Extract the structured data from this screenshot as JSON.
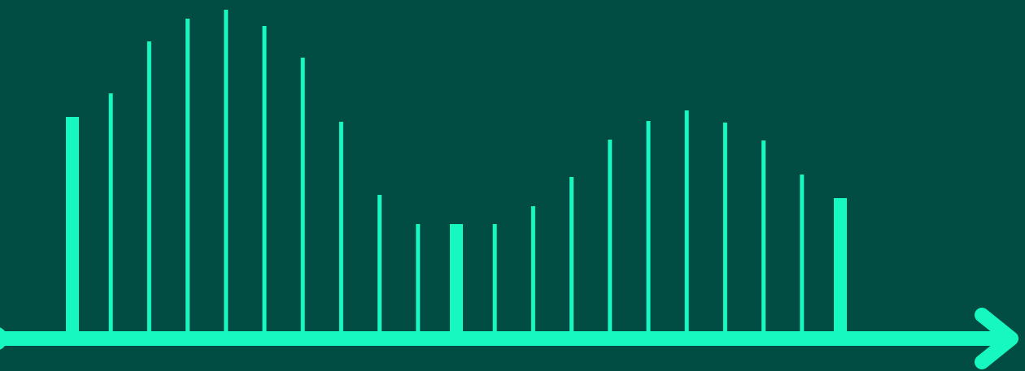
{
  "chart_data": {
    "type": "bar",
    "values": [
      264,
      293,
      357,
      385,
      396,
      376,
      337,
      258,
      168,
      132,
      132,
      132,
      154,
      190,
      236,
      259,
      272,
      257,
      235,
      193,
      164
    ],
    "highlighted": [
      0,
      10,
      20
    ],
    "color": "#17f7c0",
    "background": "#024d43",
    "ylim": [
      0,
      400
    ]
  }
}
